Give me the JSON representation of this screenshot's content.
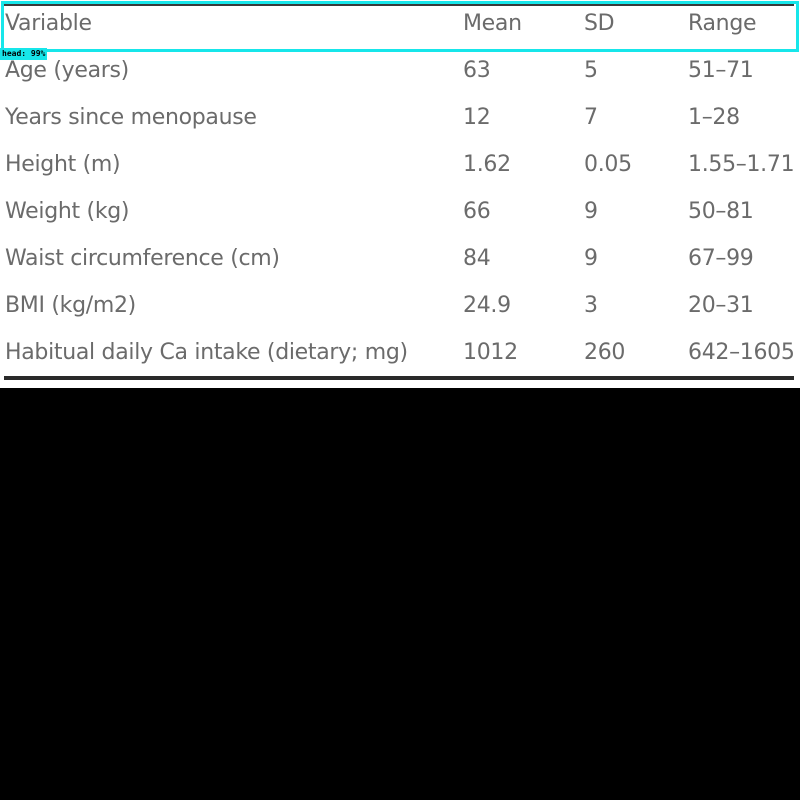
{
  "table": {
    "header": {
      "variable": "Variable",
      "mean": "Mean",
      "sd": "SD",
      "range": "Range"
    },
    "rows": [
      {
        "variable": "Age (years)",
        "mean": "63",
        "sd": "5",
        "range": "51–71"
      },
      {
        "variable": "Years since menopause",
        "mean": "12",
        "sd": "7",
        "range": "1–28"
      },
      {
        "variable": "Height (m)",
        "mean": "1.62",
        "sd": "0.05",
        "range": "1.55–1.71"
      },
      {
        "variable": "Weight (kg)",
        "mean": "66",
        "sd": "9",
        "range": "50–81"
      },
      {
        "variable": "Waist circumference (cm)",
        "mean": "84",
        "sd": "9",
        "range": "67–99"
      },
      {
        "variable": "BMI (kg/m2)",
        "mean": "24.9",
        "sd": "3",
        "range": "20–31"
      },
      {
        "variable": "Habitual daily Ca intake (dietary; mg)",
        "mean": "1012",
        "sd": "260",
        "range": "642–1605"
      }
    ]
  },
  "detection": {
    "label": "head: 99%",
    "color": "#17e6ea"
  }
}
